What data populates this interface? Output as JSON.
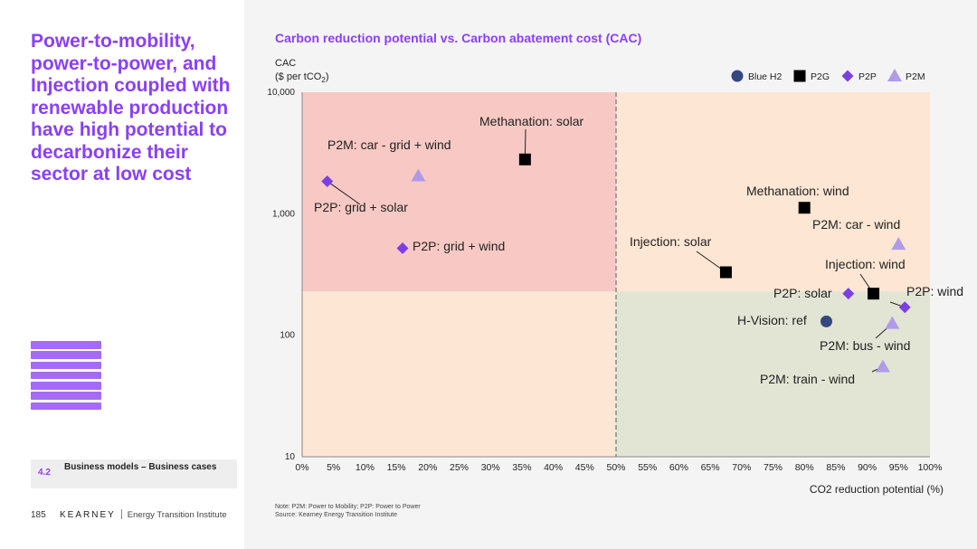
{
  "headline": "Power-to-mobility, power-to-power, and Injection coupled with renewable production have high potential to decarbonize their sector at low cost",
  "section": {
    "number": "4.2",
    "label": "Business models – Business cases"
  },
  "footer": {
    "page": "185",
    "logo": "KEARNEY",
    "institute": "Energy Transition Institute"
  },
  "notes": {
    "note": "Note: P2M: Power to Mobility; P2P: Power to Power",
    "source": "Source: Kearney Energy Transition Institute"
  },
  "colors": {
    "accent": "#8a3ffc",
    "blue_h2": "#33487f",
    "p2g": "#000000",
    "p2p": "#7b3fe4",
    "p2m": "#b09be8",
    "zone_red": "#f8c9c4",
    "zone_peach": "#fde6d3",
    "zone_green": "#e2e5d4"
  },
  "chart_data": {
    "type": "scatter",
    "title": "Carbon reduction potential vs. Carbon abatement cost (CAC)",
    "ylabel_line1": "CAC",
    "ylabel_line2_pre": "($ per tCO",
    "ylabel_line2_sub": "2",
    "ylabel_line2_post": ")",
    "xlabel": "CO2 reduction potential (%)",
    "x_range": [
      0,
      100
    ],
    "y_range": [
      10,
      10000
    ],
    "y_scale": "log",
    "x_ticks": [
      "0%",
      "5%",
      "10%",
      "15%",
      "20%",
      "25%",
      "30%",
      "35%",
      "40%",
      "45%",
      "50%",
      "55%",
      "60%",
      "65%",
      "70%",
      "75%",
      "80%",
      "85%",
      "90%",
      "95%",
      "100%"
    ],
    "y_ticks": [
      {
        "value": 10,
        "label": "10"
      },
      {
        "value": 100,
        "label": "100"
      },
      {
        "value": 1000,
        "label": "1,000"
      },
      {
        "value": 10000,
        "label": "10,000"
      }
    ],
    "divider_x": 50,
    "zone_threshold_y": 230,
    "legend": [
      {
        "key": "blue_h2",
        "label": "Blue H2",
        "marker": "circle"
      },
      {
        "key": "p2g",
        "label": "P2G",
        "marker": "square"
      },
      {
        "key": "p2p",
        "label": "P2P",
        "marker": "diamond"
      },
      {
        "key": "p2m",
        "label": "P2M",
        "marker": "triangle"
      }
    ],
    "points": [
      {
        "label": "P2P: grid + solar",
        "x": 4,
        "y": 1850,
        "category": "p2p"
      },
      {
        "label": "P2M: car - grid + wind",
        "x": 18.5,
        "y": 2050,
        "category": "p2m"
      },
      {
        "label": "P2P: grid + wind",
        "x": 16,
        "y": 520,
        "category": "p2p"
      },
      {
        "label": "Methanation: solar",
        "x": 35.5,
        "y": 2800,
        "category": "p2g"
      },
      {
        "label": "Methanation: wind",
        "x": 80,
        "y": 1120,
        "category": "p2g"
      },
      {
        "label": "Injection: solar",
        "x": 67.5,
        "y": 330,
        "category": "p2g"
      },
      {
        "label": "P2M: car - wind",
        "x": 95,
        "y": 560,
        "category": "p2m"
      },
      {
        "label": "Injection: wind",
        "x": 91,
        "y": 220,
        "category": "p2g"
      },
      {
        "label": "P2P: solar",
        "x": 87,
        "y": 220,
        "category": "p2p"
      },
      {
        "label": "P2P: wind",
        "x": 96,
        "y": 170,
        "category": "p2p"
      },
      {
        "label": "H-Vision: ref",
        "x": 83.5,
        "y": 130,
        "category": "blue_h2"
      },
      {
        "label": "P2M: bus - wind",
        "x": 94,
        "y": 125,
        "category": "p2m"
      },
      {
        "label": "P2M: train - wind",
        "x": 92.5,
        "y": 55,
        "category": "p2m"
      }
    ]
  }
}
